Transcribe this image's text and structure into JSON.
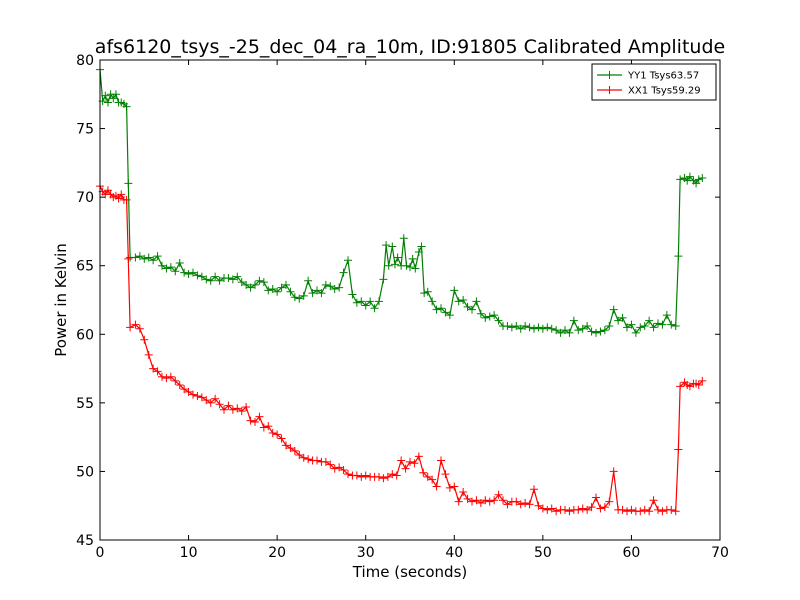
{
  "chart_data": {
    "type": "line",
    "title": "afs6120_tsys_-25_dec_04_ra_10m, ID:91805 Calibrated Amplitude",
    "xlabel": "Time (seconds)",
    "ylabel": "Power in Kelvin",
    "xlim": [
      0,
      70
    ],
    "ylim": [
      45,
      80
    ],
    "xticks": [
      "0",
      "10",
      "20",
      "30",
      "40",
      "50",
      "60",
      "70"
    ],
    "yticks": [
      "45",
      "50",
      "55",
      "60",
      "65",
      "70",
      "75",
      "80"
    ],
    "grid": false,
    "legend_position": "top-right",
    "marker": "plus",
    "series": [
      {
        "name": "YY1 Tsys63.57",
        "color": "#008000",
        "points": [
          [
            0.0,
            79.3
          ],
          [
            0.3,
            77.0
          ],
          [
            0.6,
            77.4
          ],
          [
            0.9,
            76.9
          ],
          [
            1.2,
            77.5
          ],
          [
            1.5,
            77.2
          ],
          [
            1.8,
            77.5
          ],
          [
            2.1,
            76.9
          ],
          [
            2.4,
            76.9
          ],
          [
            2.7,
            76.8
          ],
          [
            3.0,
            76.6
          ],
          [
            3.2,
            71.0
          ],
          [
            3.4,
            65.6
          ],
          [
            4.0,
            65.6
          ],
          [
            4.5,
            65.7
          ],
          [
            5.0,
            65.5
          ],
          [
            5.5,
            65.6
          ],
          [
            6.0,
            65.4
          ],
          [
            6.5,
            65.7
          ],
          [
            7.0,
            65.0
          ],
          [
            7.5,
            64.8
          ],
          [
            8.0,
            64.9
          ],
          [
            8.5,
            64.6
          ],
          [
            9.0,
            65.2
          ],
          [
            9.5,
            64.5
          ],
          [
            10.0,
            64.4
          ],
          [
            10.5,
            64.5
          ],
          [
            11.0,
            64.3
          ],
          [
            11.5,
            64.2
          ],
          [
            12.0,
            64.0
          ],
          [
            12.5,
            63.9
          ],
          [
            13.0,
            64.2
          ],
          [
            13.5,
            63.9
          ],
          [
            14.0,
            64.1
          ],
          [
            14.5,
            64.1
          ],
          [
            15.0,
            64.0
          ],
          [
            15.5,
            64.2
          ],
          [
            16.0,
            63.8
          ],
          [
            16.5,
            63.6
          ],
          [
            17.0,
            63.4
          ],
          [
            17.5,
            63.6
          ],
          [
            18.0,
            63.9
          ],
          [
            18.5,
            63.8
          ],
          [
            19.0,
            63.2
          ],
          [
            19.5,
            63.3
          ],
          [
            20.0,
            63.1
          ],
          [
            20.5,
            63.4
          ],
          [
            21.0,
            63.6
          ],
          [
            21.5,
            63.1
          ],
          [
            22.0,
            62.7
          ],
          [
            22.5,
            62.6
          ],
          [
            23.0,
            62.8
          ],
          [
            23.5,
            63.9
          ],
          [
            24.0,
            63.0
          ],
          [
            24.5,
            63.2
          ],
          [
            25.0,
            63.0
          ],
          [
            25.5,
            63.6
          ],
          [
            26.0,
            63.5
          ],
          [
            26.5,
            63.3
          ],
          [
            27.0,
            63.4
          ],
          [
            27.5,
            64.5
          ],
          [
            28.0,
            65.4
          ],
          [
            28.5,
            62.9
          ],
          [
            29.0,
            62.3
          ],
          [
            29.5,
            62.4
          ],
          [
            30.0,
            62.1
          ],
          [
            30.5,
            62.4
          ],
          [
            31.0,
            61.9
          ],
          [
            31.5,
            62.4
          ],
          [
            32.0,
            64.0
          ],
          [
            32.3,
            66.5
          ],
          [
            32.6,
            65.0
          ],
          [
            33.0,
            66.4
          ],
          [
            33.3,
            65.1
          ],
          [
            33.6,
            65.6
          ],
          [
            34.0,
            65.0
          ],
          [
            34.3,
            67.0
          ],
          [
            34.6,
            65.0
          ],
          [
            35.0,
            64.9
          ],
          [
            35.3,
            65.5
          ],
          [
            35.6,
            64.8
          ],
          [
            36.0,
            66.0
          ],
          [
            36.3,
            66.4
          ],
          [
            36.6,
            63.0
          ],
          [
            37.0,
            63.1
          ],
          [
            37.5,
            62.4
          ],
          [
            38.0,
            61.8
          ],
          [
            38.5,
            61.9
          ],
          [
            39.0,
            61.6
          ],
          [
            39.5,
            61.4
          ],
          [
            40.0,
            63.2
          ],
          [
            40.5,
            62.4
          ],
          [
            41.0,
            62.5
          ],
          [
            41.5,
            62.0
          ],
          [
            42.0,
            61.8
          ],
          [
            42.5,
            62.4
          ],
          [
            43.0,
            61.5
          ],
          [
            43.5,
            61.2
          ],
          [
            44.0,
            61.3
          ],
          [
            44.5,
            61.4
          ],
          [
            45.0,
            61.0
          ],
          [
            45.5,
            60.6
          ],
          [
            46.0,
            60.6
          ],
          [
            46.5,
            60.5
          ],
          [
            47.0,
            60.6
          ],
          [
            47.5,
            60.4
          ],
          [
            48.0,
            60.6
          ],
          [
            48.5,
            60.5
          ],
          [
            49.0,
            60.4
          ],
          [
            49.5,
            60.5
          ],
          [
            50.0,
            60.4
          ],
          [
            50.5,
            60.5
          ],
          [
            51.0,
            60.4
          ],
          [
            51.5,
            60.3
          ],
          [
            52.0,
            60.1
          ],
          [
            52.5,
            60.3
          ],
          [
            53.0,
            60.1
          ],
          [
            53.5,
            61.0
          ],
          [
            54.0,
            60.3
          ],
          [
            54.5,
            60.4
          ],
          [
            55.0,
            60.6
          ],
          [
            55.5,
            60.2
          ],
          [
            56.0,
            60.1
          ],
          [
            56.5,
            60.2
          ],
          [
            57.0,
            60.3
          ],
          [
            57.5,
            60.6
          ],
          [
            58.0,
            61.8
          ],
          [
            58.5,
            61.0
          ],
          [
            59.0,
            61.2
          ],
          [
            59.5,
            60.5
          ],
          [
            60.0,
            60.7
          ],
          [
            60.5,
            60.1
          ],
          [
            61.0,
            60.5
          ],
          [
            61.5,
            60.6
          ],
          [
            62.0,
            61.0
          ],
          [
            62.5,
            60.5
          ],
          [
            63.0,
            60.8
          ],
          [
            63.5,
            60.7
          ],
          [
            64.0,
            61.4
          ],
          [
            64.5,
            60.7
          ],
          [
            65.0,
            60.6
          ],
          [
            65.3,
            65.7
          ],
          [
            65.5,
            71.3
          ],
          [
            66.0,
            71.4
          ],
          [
            66.3,
            71.2
          ],
          [
            66.6,
            71.5
          ],
          [
            67.0,
            71.2
          ],
          [
            67.3,
            71.0
          ],
          [
            67.6,
            71.3
          ],
          [
            68.0,
            71.4
          ]
        ]
      },
      {
        "name": "XX1 Tsys59.29",
        "color": "#ff0000",
        "points": [
          [
            0.0,
            70.8
          ],
          [
            0.3,
            70.4
          ],
          [
            0.6,
            70.2
          ],
          [
            0.9,
            70.5
          ],
          [
            1.2,
            70.2
          ],
          [
            1.5,
            70.0
          ],
          [
            1.8,
            70.1
          ],
          [
            2.1,
            69.9
          ],
          [
            2.4,
            70.2
          ],
          [
            2.7,
            69.8
          ],
          [
            3.0,
            69.8
          ],
          [
            3.2,
            65.5
          ],
          [
            3.4,
            60.5
          ],
          [
            4.0,
            60.7
          ],
          [
            4.5,
            60.4
          ],
          [
            5.0,
            59.6
          ],
          [
            5.5,
            58.5
          ],
          [
            6.0,
            57.5
          ],
          [
            6.5,
            57.3
          ],
          [
            7.0,
            56.9
          ],
          [
            7.5,
            56.8
          ],
          [
            8.0,
            56.9
          ],
          [
            8.5,
            56.6
          ],
          [
            9.0,
            56.3
          ],
          [
            9.5,
            56.0
          ],
          [
            10.0,
            55.8
          ],
          [
            10.5,
            55.6
          ],
          [
            11.0,
            55.5
          ],
          [
            11.5,
            55.4
          ],
          [
            12.0,
            55.2
          ],
          [
            12.5,
            55.0
          ],
          [
            13.0,
            55.3
          ],
          [
            13.5,
            54.9
          ],
          [
            14.0,
            54.5
          ],
          [
            14.5,
            54.8
          ],
          [
            15.0,
            54.5
          ],
          [
            15.5,
            54.6
          ],
          [
            16.0,
            54.4
          ],
          [
            16.5,
            54.7
          ],
          [
            17.0,
            53.7
          ],
          [
            17.5,
            53.6
          ],
          [
            18.0,
            54.0
          ],
          [
            18.5,
            53.2
          ],
          [
            19.0,
            53.3
          ],
          [
            19.5,
            52.8
          ],
          [
            20.0,
            52.7
          ],
          [
            20.5,
            52.4
          ],
          [
            21.0,
            51.9
          ],
          [
            21.5,
            51.7
          ],
          [
            22.0,
            51.5
          ],
          [
            22.5,
            51.2
          ],
          [
            23.0,
            51.0
          ],
          [
            23.5,
            50.9
          ],
          [
            24.0,
            50.8
          ],
          [
            24.5,
            50.8
          ],
          [
            25.0,
            50.7
          ],
          [
            25.5,
            50.7
          ],
          [
            26.0,
            50.5
          ],
          [
            26.5,
            50.2
          ],
          [
            27.0,
            50.3
          ],
          [
            27.5,
            50.1
          ],
          [
            28.0,
            49.8
          ],
          [
            28.5,
            49.7
          ],
          [
            29.0,
            49.7
          ],
          [
            29.5,
            49.6
          ],
          [
            30.0,
            49.7
          ],
          [
            30.5,
            49.6
          ],
          [
            31.0,
            49.6
          ],
          [
            31.5,
            49.6
          ],
          [
            32.0,
            49.5
          ],
          [
            32.5,
            49.6
          ],
          [
            33.0,
            49.8
          ],
          [
            33.5,
            49.7
          ],
          [
            34.0,
            50.8
          ],
          [
            34.5,
            50.2
          ],
          [
            35.0,
            50.7
          ],
          [
            35.5,
            50.6
          ],
          [
            36.0,
            51.1
          ],
          [
            36.5,
            49.9
          ],
          [
            37.0,
            49.6
          ],
          [
            37.5,
            49.4
          ],
          [
            38.0,
            48.9
          ],
          [
            38.5,
            50.8
          ],
          [
            39.0,
            49.8
          ],
          [
            39.5,
            48.8
          ],
          [
            40.0,
            48.9
          ],
          [
            40.5,
            47.8
          ],
          [
            41.0,
            48.5
          ],
          [
            41.5,
            48.0
          ],
          [
            42.0,
            47.8
          ],
          [
            42.5,
            47.9
          ],
          [
            43.0,
            47.7
          ],
          [
            43.5,
            47.9
          ],
          [
            44.0,
            47.8
          ],
          [
            44.5,
            47.9
          ],
          [
            45.0,
            48.3
          ],
          [
            45.5,
            47.9
          ],
          [
            46.0,
            47.6
          ],
          [
            46.5,
            47.8
          ],
          [
            47.0,
            47.8
          ],
          [
            47.5,
            47.6
          ],
          [
            48.0,
            47.7
          ],
          [
            48.5,
            47.6
          ],
          [
            49.0,
            48.7
          ],
          [
            49.5,
            47.5
          ],
          [
            50.0,
            47.3
          ],
          [
            50.5,
            47.2
          ],
          [
            51.0,
            47.3
          ],
          [
            51.5,
            47.1
          ],
          [
            52.0,
            47.2
          ],
          [
            52.5,
            47.2
          ],
          [
            53.0,
            47.1
          ],
          [
            53.5,
            47.2
          ],
          [
            54.0,
            47.2
          ],
          [
            54.5,
            47.3
          ],
          [
            55.0,
            47.2
          ],
          [
            55.5,
            47.4
          ],
          [
            56.0,
            48.1
          ],
          [
            56.5,
            47.3
          ],
          [
            57.0,
            47.4
          ],
          [
            57.5,
            47.8
          ],
          [
            58.0,
            50.0
          ],
          [
            58.5,
            47.2
          ],
          [
            59.0,
            47.2
          ],
          [
            59.5,
            47.1
          ],
          [
            60.0,
            47.2
          ],
          [
            60.5,
            47.1
          ],
          [
            61.0,
            47.1
          ],
          [
            61.5,
            47.2
          ],
          [
            62.0,
            47.1
          ],
          [
            62.5,
            47.9
          ],
          [
            63.0,
            47.2
          ],
          [
            63.5,
            47.1
          ],
          [
            64.0,
            47.2
          ],
          [
            64.5,
            47.2
          ],
          [
            65.0,
            47.1
          ],
          [
            65.3,
            51.6
          ],
          [
            65.5,
            56.2
          ],
          [
            66.0,
            56.5
          ],
          [
            66.3,
            56.3
          ],
          [
            66.6,
            56.2
          ],
          [
            67.0,
            56.4
          ],
          [
            67.3,
            56.4
          ],
          [
            67.6,
            56.3
          ],
          [
            68.0,
            56.6
          ]
        ]
      }
    ]
  }
}
